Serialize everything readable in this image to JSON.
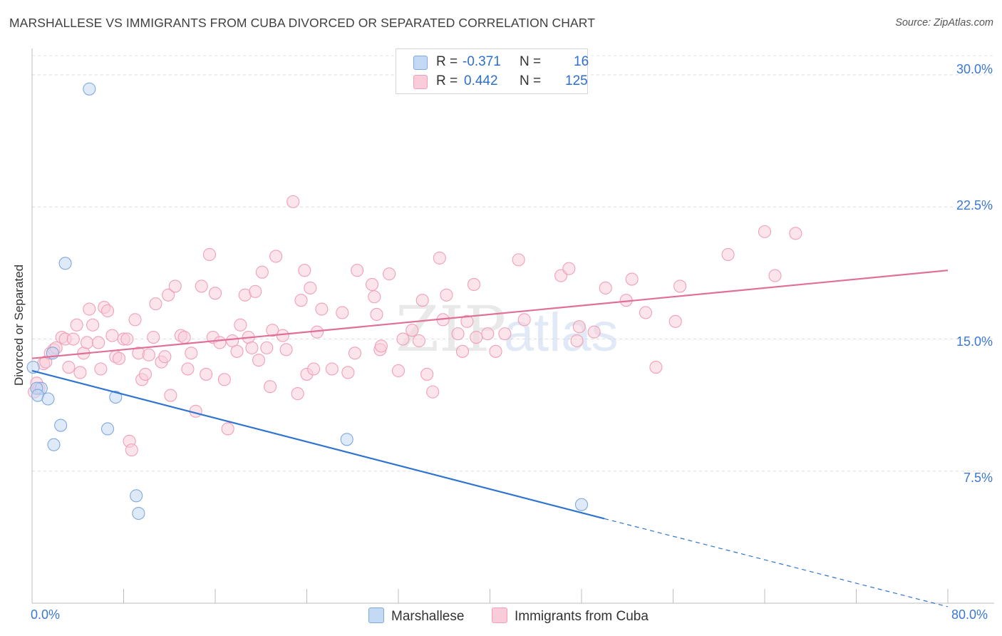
{
  "title": "MARSHALLESE VS IMMIGRANTS FROM CUBA DIVORCED OR SEPARATED CORRELATION CHART",
  "source": "Source: ZipAtlas.com",
  "watermark": {
    "zip": "ZIP",
    "atlas": "atlas"
  },
  "legend": {
    "r_label": "R =",
    "n_label": "N =",
    "rows": [
      {
        "r": "-0.371",
        "n": "16"
      },
      {
        "r": "0.442",
        "n": "125"
      }
    ]
  },
  "chart_data": {
    "type": "scatter",
    "title": "MARSHALLESE VS IMMIGRANTS FROM CUBA DIVORCED OR SEPARATED CORRELATION CHART",
    "xlabel": "",
    "ylabel": "Divorced or Separated",
    "xlim": [
      0,
      80
    ],
    "ylim": [
      0,
      31.5
    ],
    "x_tick_labels": [
      "0.0%",
      "80.0%"
    ],
    "y_ticks": [
      7.5,
      15.0,
      22.5,
      30.0
    ],
    "y_tick_labels": [
      "7.5%",
      "15.0%",
      "22.5%",
      "30.0%"
    ],
    "grid": true,
    "legend_position": "top-center",
    "series": [
      {
        "name": "Marshallese",
        "color": "#7fa8e0",
        "fill": "#c4d9f4",
        "line_color": "#2f74d0",
        "r": -0.371,
        "n": 16,
        "trend": {
          "x0": 0,
          "y0": 13.2,
          "x1": 50,
          "y1": 4.8,
          "dashed_to_x": 80,
          "dashed_to_y": -0.2
        },
        "points": [
          [
            5.0,
            29.2
          ],
          [
            2.9,
            19.3
          ],
          [
            1.8,
            14.2
          ],
          [
            0.1,
            13.4
          ],
          [
            0.8,
            12.2
          ],
          [
            0.4,
            12.2
          ],
          [
            0.5,
            11.8
          ],
          [
            1.4,
            11.6
          ],
          [
            7.3,
            11.7
          ],
          [
            2.5,
            10.1
          ],
          [
            6.6,
            9.9
          ],
          [
            1.9,
            9.0
          ],
          [
            27.5,
            9.3
          ],
          [
            9.1,
            6.1
          ],
          [
            9.3,
            5.1
          ],
          [
            48.0,
            5.6
          ]
        ]
      },
      {
        "name": "Immigrants from Cuba",
        "color": "#f0a0b8",
        "fill": "#f8cdd9",
        "line_color": "#e07098",
        "r": 0.442,
        "n": 125,
        "trend": {
          "x0": 0,
          "y0": 13.9,
          "x1": 80,
          "y1": 18.9
        },
        "points": [
          [
            0.2,
            12.0
          ],
          [
            0.4,
            12.5
          ],
          [
            0.6,
            12.2
          ],
          [
            1.0,
            13.6
          ],
          [
            1.2,
            13.7
          ],
          [
            1.6,
            14.2
          ],
          [
            1.9,
            14.4
          ],
          [
            2.1,
            14.5
          ],
          [
            2.6,
            15.1
          ],
          [
            2.9,
            15.0
          ],
          [
            3.2,
            13.4
          ],
          [
            3.6,
            15.0
          ],
          [
            3.9,
            15.8
          ],
          [
            4.2,
            13.1
          ],
          [
            4.5,
            14.2
          ],
          [
            4.8,
            14.8
          ],
          [
            5.0,
            16.7
          ],
          [
            5.3,
            15.8
          ],
          [
            5.8,
            14.8
          ],
          [
            6.0,
            13.3
          ],
          [
            6.3,
            16.8
          ],
          [
            6.6,
            16.6
          ],
          [
            7.0,
            15.2
          ],
          [
            7.3,
            14.0
          ],
          [
            7.6,
            13.9
          ],
          [
            8.0,
            15.0
          ],
          [
            8.3,
            15.0
          ],
          [
            8.5,
            9.2
          ],
          [
            8.7,
            8.7
          ],
          [
            9.0,
            16.1
          ],
          [
            9.3,
            14.2
          ],
          [
            9.6,
            12.7
          ],
          [
            9.9,
            13.0
          ],
          [
            10.2,
            14.1
          ],
          [
            10.6,
            15.1
          ],
          [
            10.8,
            17.0
          ],
          [
            11.3,
            13.7
          ],
          [
            11.6,
            14.0
          ],
          [
            11.9,
            17.5
          ],
          [
            12.1,
            11.8
          ],
          [
            12.5,
            18.0
          ],
          [
            13.0,
            15.2
          ],
          [
            13.3,
            15.1
          ],
          [
            13.6,
            13.3
          ],
          [
            13.9,
            14.2
          ],
          [
            14.3,
            10.9
          ],
          [
            14.8,
            18.0
          ],
          [
            15.2,
            13.0
          ],
          [
            15.5,
            19.8
          ],
          [
            15.8,
            15.1
          ],
          [
            16.0,
            17.6
          ],
          [
            16.4,
            14.8
          ],
          [
            16.8,
            12.7
          ],
          [
            17.1,
            9.9
          ],
          [
            17.5,
            14.9
          ],
          [
            17.9,
            14.3
          ],
          [
            18.2,
            15.8
          ],
          [
            18.6,
            17.5
          ],
          [
            18.9,
            15.1
          ],
          [
            19.2,
            14.5
          ],
          [
            19.5,
            17.7
          ],
          [
            19.8,
            13.8
          ],
          [
            20.1,
            18.8
          ],
          [
            20.5,
            14.5
          ],
          [
            20.8,
            12.3
          ],
          [
            21.0,
            15.5
          ],
          [
            21.3,
            19.7
          ],
          [
            21.9,
            15.2
          ],
          [
            22.2,
            14.4
          ],
          [
            22.8,
            22.8
          ],
          [
            23.2,
            11.9
          ],
          [
            23.5,
            17.2
          ],
          [
            23.8,
            18.9
          ],
          [
            24.0,
            13.0
          ],
          [
            24.3,
            17.9
          ],
          [
            24.6,
            13.3
          ],
          [
            24.9,
            15.4
          ],
          [
            25.3,
            16.7
          ],
          [
            26.2,
            13.3
          ],
          [
            27.1,
            16.5
          ],
          [
            27.6,
            13.1
          ],
          [
            28.2,
            14.2
          ],
          [
            28.4,
            18.9
          ],
          [
            29.7,
            18.1
          ],
          [
            29.9,
            17.4
          ],
          [
            30.1,
            16.4
          ],
          [
            30.4,
            14.4
          ],
          [
            30.5,
            14.6
          ],
          [
            31.2,
            18.7
          ],
          [
            32.0,
            13.2
          ],
          [
            32.4,
            15.0
          ],
          [
            33.2,
            15.5
          ],
          [
            33.8,
            14.9
          ],
          [
            34.1,
            17.2
          ],
          [
            34.5,
            13.0
          ],
          [
            35.0,
            12.0
          ],
          [
            35.6,
            19.6
          ],
          [
            35.9,
            16.1
          ],
          [
            36.2,
            17.5
          ],
          [
            37.2,
            15.3
          ],
          [
            37.6,
            14.3
          ],
          [
            38.0,
            16.0
          ],
          [
            38.6,
            18.1
          ],
          [
            38.8,
            15.1
          ],
          [
            39.8,
            15.3
          ],
          [
            40.5,
            14.3
          ],
          [
            41.3,
            15.3
          ],
          [
            42.5,
            19.5
          ],
          [
            43.0,
            16.1
          ],
          [
            46.2,
            18.6
          ],
          [
            46.9,
            19.0
          ],
          [
            47.6,
            14.9
          ],
          [
            47.8,
            15.7
          ],
          [
            49.1,
            15.4
          ],
          [
            50.1,
            17.9
          ],
          [
            51.9,
            17.2
          ],
          [
            52.4,
            18.4
          ],
          [
            53.6,
            16.5
          ],
          [
            54.5,
            13.4
          ],
          [
            56.2,
            16.0
          ],
          [
            56.6,
            18.0
          ],
          [
            60.8,
            19.8
          ],
          [
            64.0,
            21.1
          ],
          [
            64.9,
            18.6
          ],
          [
            66.7,
            21.0
          ]
        ]
      }
    ]
  }
}
